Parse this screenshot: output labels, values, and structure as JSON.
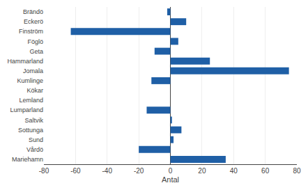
{
  "chart_data": {
    "type": "bar",
    "orientation": "horizontal",
    "categories": [
      "Brändö",
      "Eckerö",
      "Finström",
      "Föglö",
      "Geta",
      "Hammarland",
      "Jomala",
      "Kumlinge",
      "Kökar",
      "Lemland",
      "Lumparland",
      "Saltvik",
      "Sottunga",
      "Sund",
      "Vårdö",
      "Mariehamn"
    ],
    "values": [
      -2,
      10,
      -63,
      5,
      -10,
      25,
      75,
      -12,
      0,
      0,
      -15,
      1,
      7,
      2,
      -20,
      35
    ],
    "color": "#1F5FA6",
    "xlabel": "Antal",
    "xlim": [
      -80,
      80
    ],
    "xticks": [
      -80,
      -60,
      -40,
      -20,
      0,
      20,
      40,
      60,
      80
    ],
    "grid": true
  }
}
